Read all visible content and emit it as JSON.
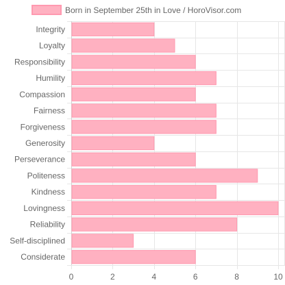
{
  "chart_data": {
    "type": "bar",
    "orientation": "horizontal",
    "legend": {
      "label": "Born in September 25th in Love / HoroVisor.com",
      "position": "top"
    },
    "categories": [
      "Integrity",
      "Loyalty",
      "Responsibility",
      "Humility",
      "Compassion",
      "Fairness",
      "Forgiveness",
      "Generosity",
      "Perseverance",
      "Politeness",
      "Kindness",
      "Lovingness",
      "Reliability",
      "Self-disciplined",
      "Considerate"
    ],
    "series": [
      {
        "name": "Born in September 25th in Love / HoroVisor.com",
        "values": [
          4,
          5,
          6,
          7,
          6,
          7,
          7,
          4,
          6,
          9,
          7,
          10,
          8,
          3,
          6
        ]
      }
    ],
    "xlim": [
      0,
      10
    ],
    "xticks": [
      0,
      2,
      4,
      6,
      8,
      10
    ],
    "grid": true,
    "colors": {
      "bar_fill": "#ffb1c1",
      "bar_stroke": "#ff99b0",
      "grid": "#e6e6e6",
      "text": "#666666"
    }
  }
}
